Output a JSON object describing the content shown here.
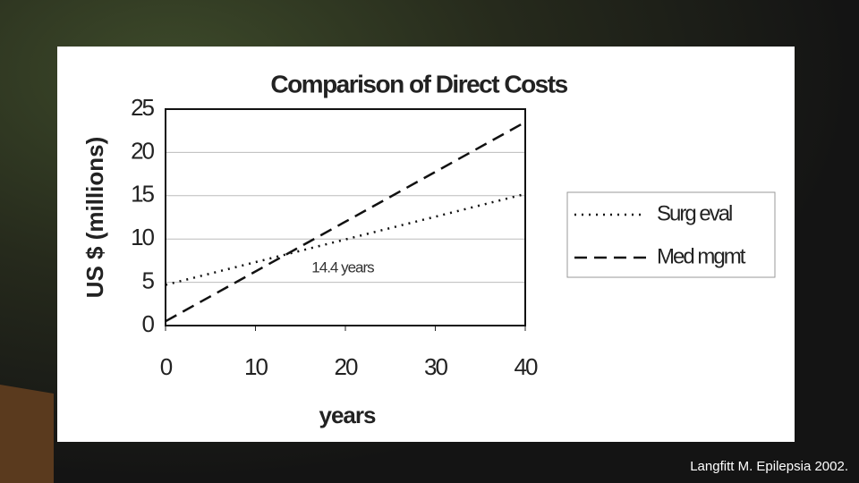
{
  "chart_data": {
    "type": "line",
    "title": "Comparison of Direct Costs",
    "xlabel": "years",
    "ylabel": "US $ (millions)",
    "annotation": "14.4 years",
    "x": [
      0,
      40
    ],
    "series": [
      {
        "name": "Surg eval",
        "color": "#111111",
        "dash": "dot",
        "values": [
          4.7,
          15.2
        ]
      },
      {
        "name": "Med mgmt",
        "color": "#111111",
        "dash": "dash",
        "values": [
          0.5,
          23.5
        ]
      }
    ],
    "xlim": [
      0,
      40
    ],
    "xticks": [
      0,
      10,
      20,
      30,
      40
    ],
    "ylim": [
      0,
      25
    ],
    "yticks": [
      0,
      5,
      10,
      15,
      20,
      25
    ],
    "grid": true,
    "legend": "right"
  },
  "citation": "Langfitt M. Epilepsia 2002."
}
